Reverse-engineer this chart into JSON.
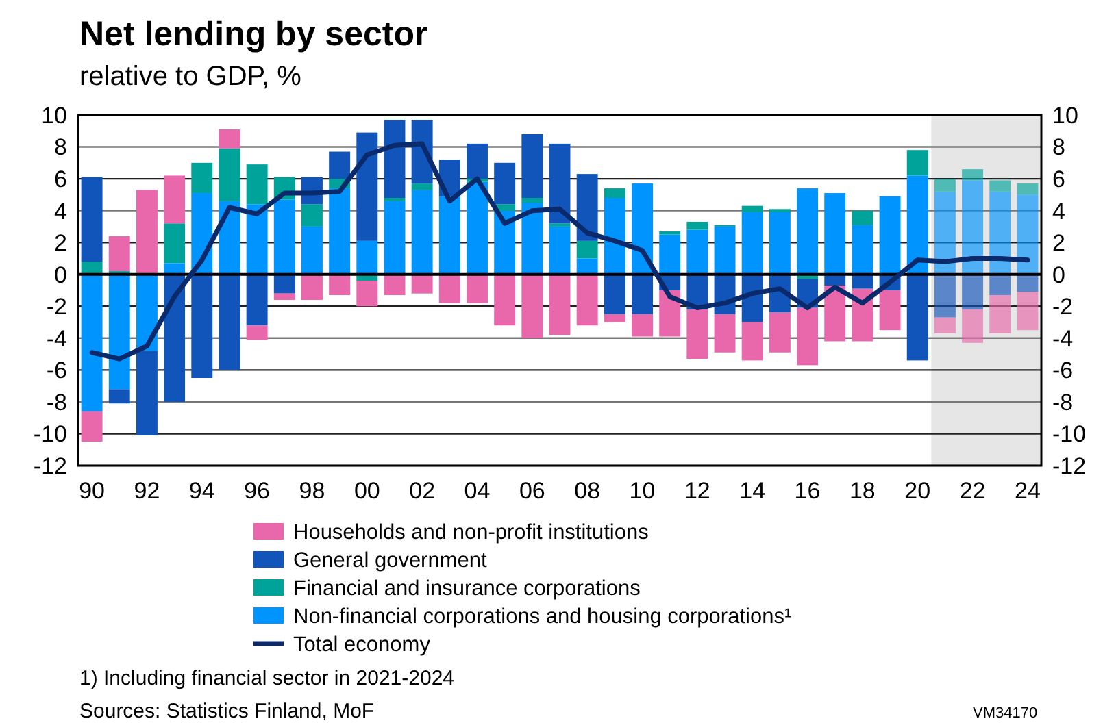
{
  "chart_data": {
    "type": "bar",
    "stacked": true,
    "title": "Net lending by sector",
    "subtitle": "relative to GDP, %",
    "x": [
      1990,
      1991,
      1992,
      1993,
      1994,
      1995,
      1996,
      1997,
      1998,
      1999,
      2000,
      2001,
      2002,
      2003,
      2004,
      2005,
      2006,
      2007,
      2008,
      2009,
      2010,
      2011,
      2012,
      2013,
      2014,
      2015,
      2016,
      2017,
      2018,
      2019,
      2020,
      2021,
      2022,
      2023,
      2024
    ],
    "xlim": [
      1989.5,
      2024.5
    ],
    "xticks": [
      {
        "value": 1990,
        "label": "90"
      },
      {
        "value": 1992,
        "label": "92"
      },
      {
        "value": 1994,
        "label": "94"
      },
      {
        "value": 1996,
        "label": "96"
      },
      {
        "value": 1998,
        "label": "98"
      },
      {
        "value": 2000,
        "label": "00"
      },
      {
        "value": 2002,
        "label": "02"
      },
      {
        "value": 2004,
        "label": "04"
      },
      {
        "value": 2006,
        "label": "06"
      },
      {
        "value": 2008,
        "label": "08"
      },
      {
        "value": 2010,
        "label": "10"
      },
      {
        "value": 2012,
        "label": "12"
      },
      {
        "value": 2014,
        "label": "14"
      },
      {
        "value": 2016,
        "label": "16"
      },
      {
        "value": 2018,
        "label": "18"
      },
      {
        "value": 2020,
        "label": "20"
      },
      {
        "value": 2022,
        "label": "22"
      },
      {
        "value": 2024,
        "label": "24"
      }
    ],
    "ylim": [
      -12,
      10
    ],
    "yticks": [
      -12,
      -10,
      -8,
      -6,
      -4,
      -2,
      0,
      2,
      4,
      6,
      8,
      10
    ],
    "y2lim": [
      -12,
      10
    ],
    "y2ticks": [
      -12,
      -10,
      -8,
      -6,
      -4,
      -2,
      0,
      2,
      4,
      6,
      8,
      10
    ],
    "grid": "y",
    "legend": "bottom",
    "bands": [
      {
        "axis": "x",
        "from": 2020.5,
        "to": 2024.5,
        "color": "#e6e6e6"
      }
    ],
    "series": [
      {
        "name": "Non-financial corporations and housing corporations¹",
        "color": "#0094ff",
        "values": [
          -8.6,
          -7.2,
          -4.8,
          0.7,
          5.1,
          4.6,
          4.4,
          4.7,
          3.0,
          5.4,
          2.1,
          4.6,
          5.3,
          4.9,
          5.8,
          4.0,
          4.5,
          3.0,
          1.0,
          4.8,
          5.7,
          2.5,
          2.8,
          3.0,
          3.9,
          3.9,
          5.4,
          5.1,
          3.1,
          4.9,
          6.2,
          5.2,
          5.9,
          5.2,
          5.0
        ]
      },
      {
        "name": "Financial and insurance corporations",
        "color": "#00a39a",
        "values": [
          0.8,
          0.2,
          null,
          2.5,
          1.9,
          3.3,
          2.5,
          1.4,
          1.4,
          0.6,
          -0.4,
          0.2,
          0.4,
          null,
          0.2,
          0.4,
          0.3,
          0.2,
          1.1,
          0.6,
          null,
          0.2,
          0.5,
          0.1,
          0.4,
          0.2,
          -0.3,
          null,
          0.9,
          null,
          1.6,
          0.8,
          0.7,
          0.7,
          0.7
        ]
      },
      {
        "name": "General government",
        "color": "#1155bb",
        "values": [
          5.3,
          -0.9,
          -5.3,
          -8.0,
          -6.5,
          -6.0,
          -3.2,
          -1.2,
          1.7,
          1.7,
          6.8,
          4.9,
          4.0,
          2.3,
          2.2,
          2.6,
          4.0,
          5.0,
          4.2,
          -2.5,
          -2.5,
          -1.0,
          -2.2,
          -2.5,
          -3.0,
          -2.4,
          -1.8,
          -0.7,
          -0.9,
          -1.0,
          -5.4,
          -2.7,
          -2.2,
          -1.3,
          -1.1
        ]
      },
      {
        "name": "Households and non-profit institutions",
        "color": "#e868ab",
        "values": [
          -1.9,
          2.2,
          5.3,
          3.0,
          null,
          1.2,
          -0.9,
          -0.4,
          -1.6,
          -1.3,
          -1.6,
          -1.3,
          -1.2,
          -1.8,
          -1.8,
          -3.2,
          -4.0,
          -3.8,
          -3.2,
          -0.5,
          -1.4,
          -2.9,
          -3.1,
          -2.4,
          -2.4,
          -2.5,
          -3.6,
          -3.5,
          -3.3,
          -2.5,
          null,
          -1.0,
          -2.1,
          -2.4,
          -2.4
        ]
      },
      {
        "name": "Total economy",
        "type": "line",
        "color": "#0a2a6b",
        "values": [
          -4.9,
          -5.3,
          -4.5,
          -1.4,
          0.9,
          4.2,
          3.8,
          5.1,
          5.1,
          5.2,
          7.5,
          8.1,
          8.2,
          4.6,
          6.0,
          3.2,
          4.0,
          4.1,
          2.6,
          2.1,
          1.5,
          -1.4,
          -2.1,
          -1.8,
          -1.2,
          -0.9,
          -2.1,
          -0.8,
          -1.8,
          -0.5,
          0.9,
          0.8,
          1.0,
          1.0,
          0.9
        ]
      }
    ],
    "annotations": [
      "1) Including financial sector in 2021-2024",
      "Sources: Statistics Finland, MoF",
      "VM34170"
    ]
  }
}
